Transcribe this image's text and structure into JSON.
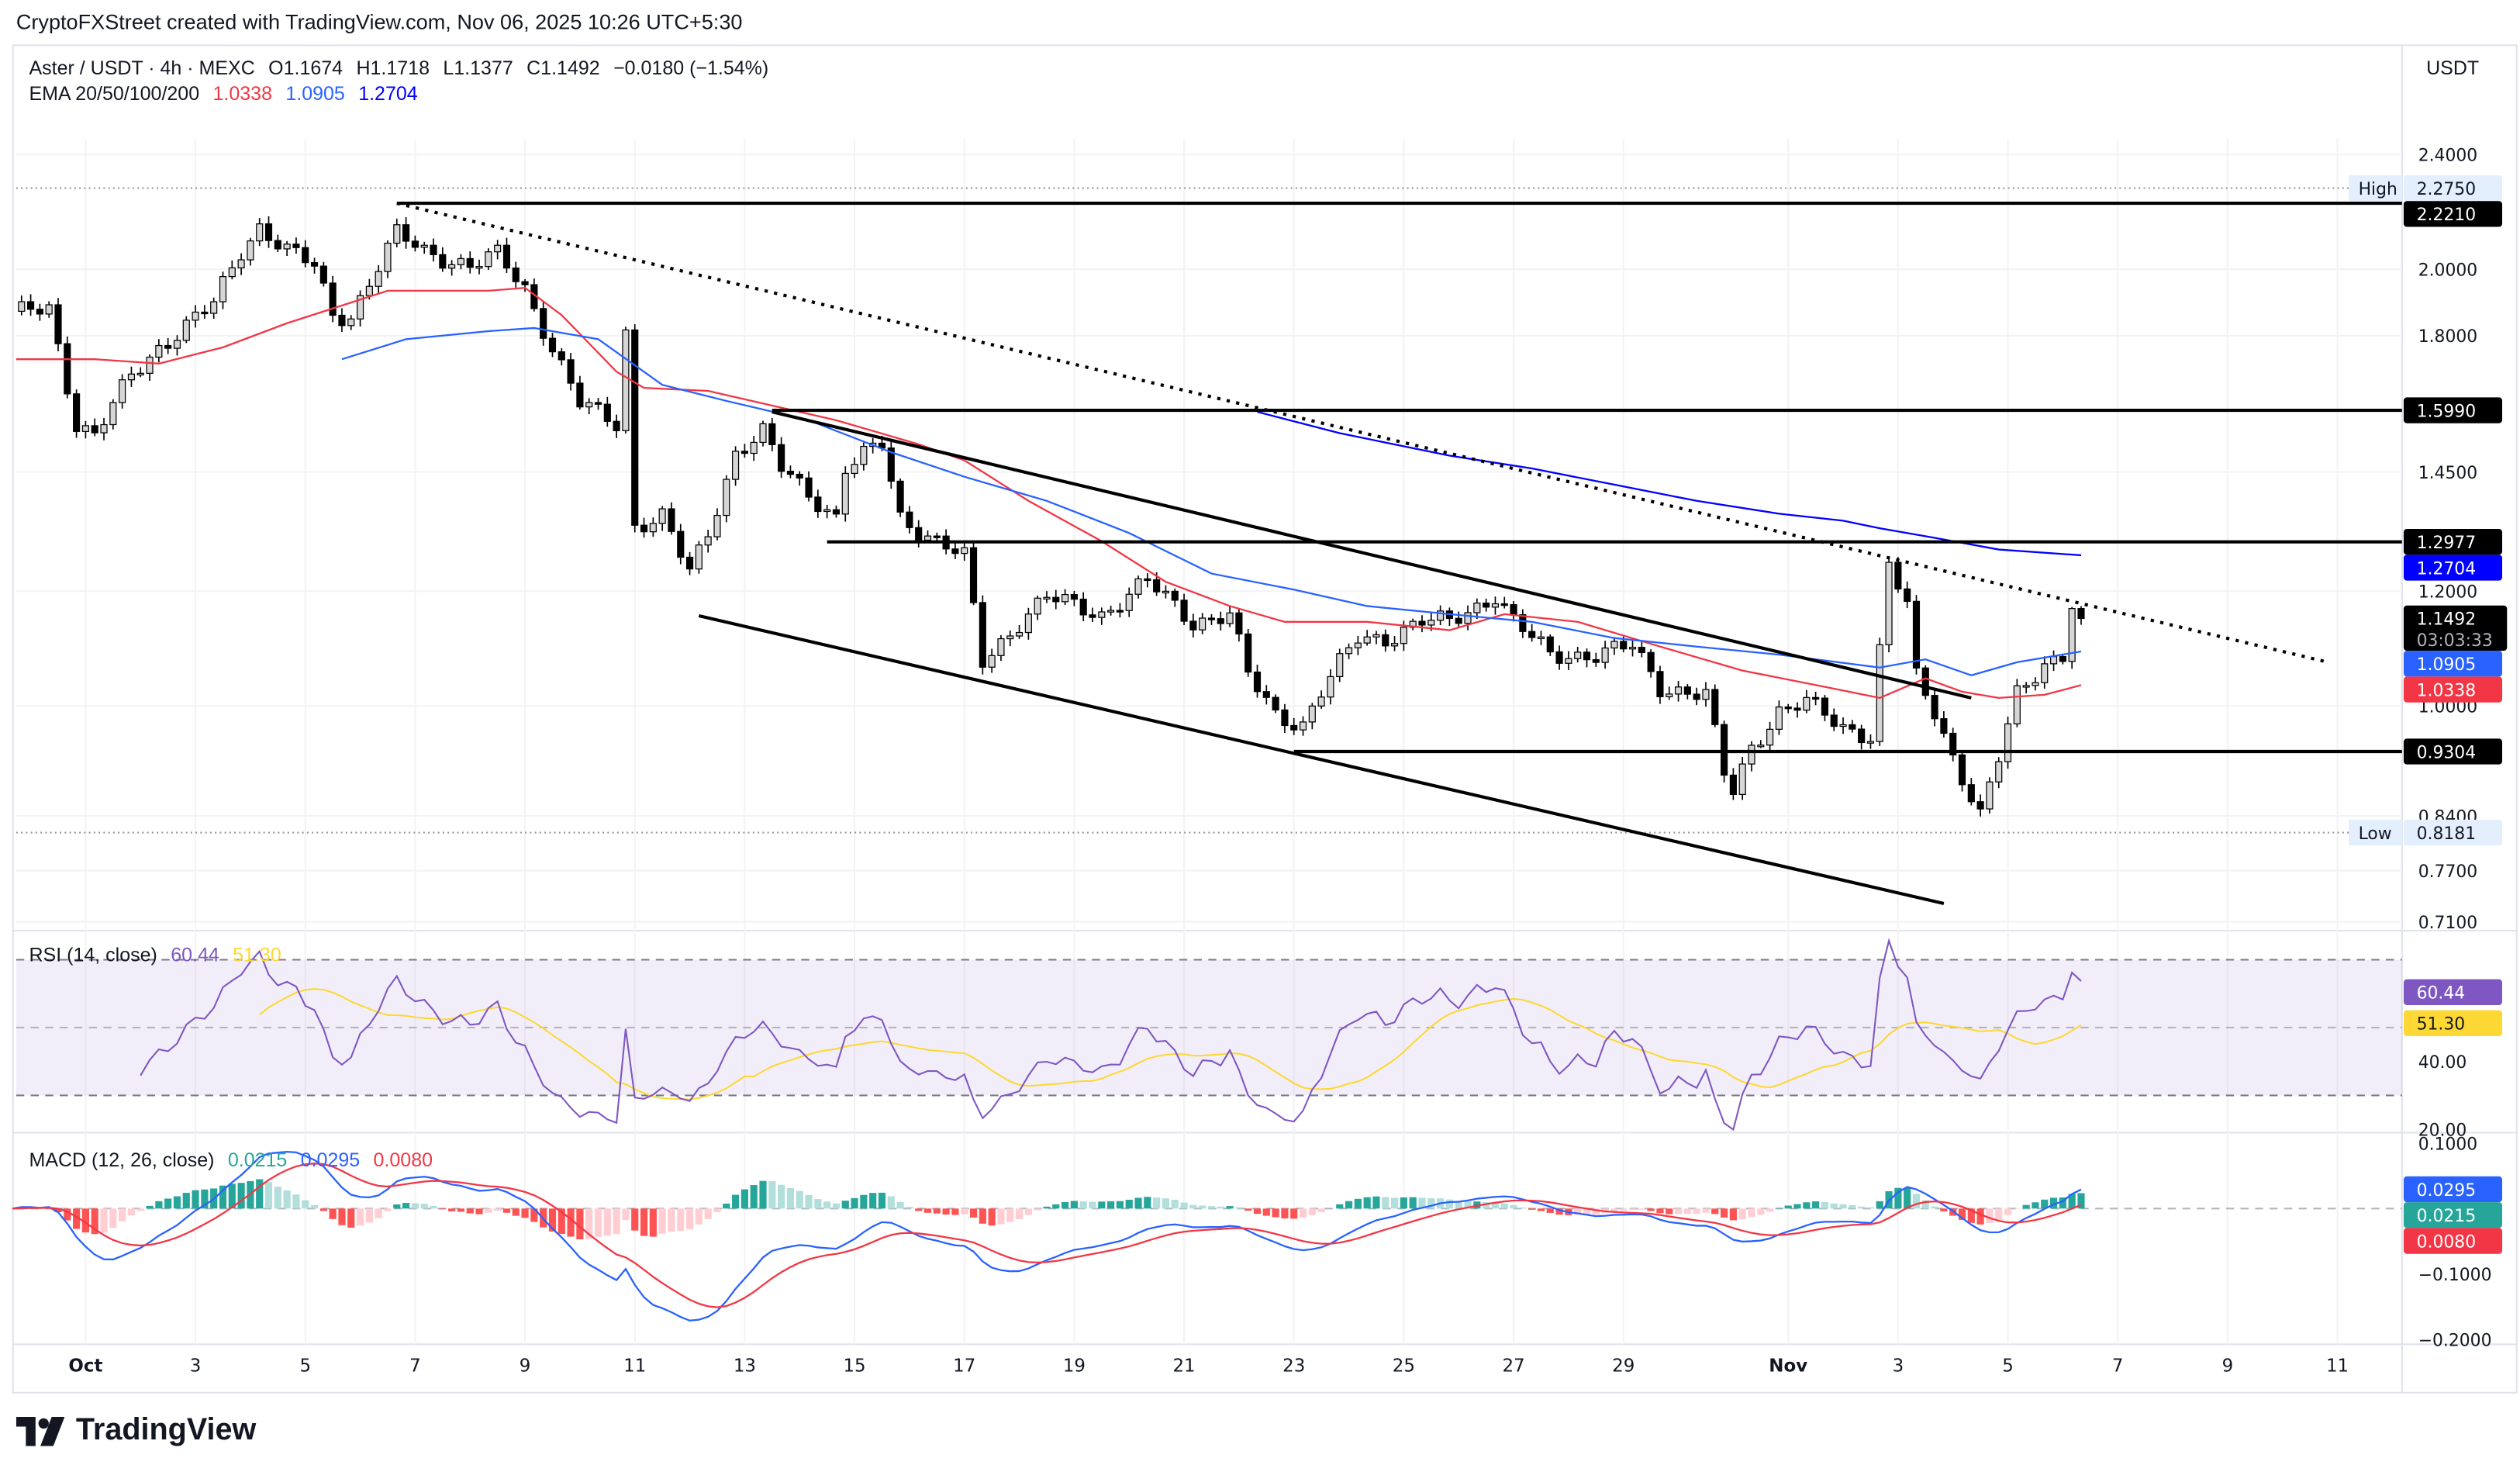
{
  "header": {
    "attribution": "CryptoFXStreet created with TradingView.com, Nov 06, 2025 10:26 UTC+5:30"
  },
  "legend": {
    "symbol": "Aster / USDT · 4h · MEXC",
    "open": "O1.1674",
    "high": "H1.1718",
    "low": "L1.1377",
    "close": "C1.1492",
    "change": "−0.0180 (−1.54%)",
    "ema_label": "EMA 20/50/100/200",
    "ema_values": [
      {
        "value": "1.0338",
        "color": "#f23645"
      },
      {
        "value": "1.0905",
        "color": "#2962ff"
      },
      {
        "value": "1.2704",
        "color": "#0000ff"
      }
    ]
  },
  "currency": "USDT",
  "rsi": {
    "label": "RSI (14, close)",
    "value": "60.44",
    "ma": "51.30",
    "color": "#7e57c2",
    "ma_color": "#fdd835"
  },
  "macd": {
    "label": "MACD (12, 26, close)",
    "histogram": "0.0215",
    "macd": "0.0295",
    "signal": "0.0080",
    "hist_color": "#26a69a",
    "macd_color": "#2962ff",
    "signal_color": "#f23645"
  },
  "logo": "TradingView",
  "chart_data": {
    "type": "candlestick",
    "scale": "log",
    "ylim": [
      0.71,
      2.4
    ],
    "bull_color": "#d6d6d6",
    "bear_color": "#000000",
    "x_axis": [
      {
        "label": "Oct",
        "date": "2025-10-01"
      },
      {
        "label": "3",
        "date": "2025-10-03"
      },
      {
        "label": "5",
        "date": "2025-10-05"
      },
      {
        "label": "7",
        "date": "2025-10-07"
      },
      {
        "label": "9",
        "date": "2025-10-09"
      },
      {
        "label": "11",
        "date": "2025-10-11"
      },
      {
        "label": "13",
        "date": "2025-10-13"
      },
      {
        "label": "15",
        "date": "2025-10-15"
      },
      {
        "label": "17",
        "date": "2025-10-17"
      },
      {
        "label": "19",
        "date": "2025-10-19"
      },
      {
        "label": "21",
        "date": "2025-10-21"
      },
      {
        "label": "23",
        "date": "2025-10-23"
      },
      {
        "label": "25",
        "date": "2025-10-25"
      },
      {
        "label": "27",
        "date": "2025-10-27"
      },
      {
        "label": "29",
        "date": "2025-10-29"
      },
      {
        "label": "Nov",
        "date": "2025-11-01"
      },
      {
        "label": "3",
        "date": "2025-11-03"
      },
      {
        "label": "5",
        "date": "2025-11-05"
      },
      {
        "label": "7",
        "date": "2025-11-07"
      },
      {
        "label": "9",
        "date": "2025-11-09"
      },
      {
        "label": "11",
        "date": "2025-11-11"
      }
    ],
    "price_ticks": [
      "2.4000",
      "2.0000",
      "1.8000",
      "1.4500",
      "1.2000",
      "1.0000",
      "0.8400",
      "0.7700",
      "0.7100"
    ],
    "last_candle": {
      "date": "2025-11-06T08:00",
      "open": 1.1674,
      "high": 1.1718,
      "low": 1.1377,
      "close": 1.1492
    },
    "price_path": [
      [
        "2025-09-29T16:00",
        1.86
      ],
      [
        "2025-09-30T08:00",
        1.884
      ],
      [
        "2025-09-30T20:00",
        1.566
      ],
      [
        "2025-10-01T04:00",
        1.534
      ],
      [
        "2025-10-01T20:00",
        1.69
      ],
      [
        "2025-10-02T08:00",
        1.767
      ],
      [
        "2025-10-03T08:00",
        1.893
      ],
      [
        "2025-10-03T20:00",
        2.06
      ],
      [
        "2025-10-04T04:00",
        2.142
      ],
      [
        "2025-10-04T16:00",
        2.06
      ],
      [
        "2025-10-05T04:00",
        2.009
      ],
      [
        "2025-10-05T12:00",
        1.86
      ],
      [
        "2025-10-05T20:00",
        1.86
      ],
      [
        "2025-10-06T08:00",
        2.009
      ],
      [
        "2025-10-06T16:00",
        2.114
      ],
      [
        "2025-10-07T04:00",
        2.06
      ],
      [
        "2025-10-08T00:00",
        2.009
      ],
      [
        "2025-10-08T12:00",
        2.045
      ],
      [
        "2025-10-09T00:00",
        1.942
      ],
      [
        "2025-10-09T12:00",
        1.767
      ],
      [
        "2025-10-10T00:00",
        1.615
      ],
      [
        "2025-10-10T16:00",
        1.566
      ],
      [
        "2025-10-10T20:00",
        1.813
      ],
      [
        "2025-10-11T00:00",
        1.333
      ],
      [
        "2025-10-11T12:00",
        1.35
      ],
      [
        "2025-10-12T00:00",
        1.234
      ],
      [
        "2025-10-12T08:00",
        1.316
      ],
      [
        "2025-10-12T20:00",
        1.496
      ],
      [
        "2025-10-13T08:00",
        1.542
      ],
      [
        "2025-10-13T16:00",
        1.458
      ],
      [
        "2025-10-14T04:00",
        1.403
      ],
      [
        "2025-10-14T16:00",
        1.35
      ],
      [
        "2025-10-14T20:00",
        1.458
      ],
      [
        "2025-10-15T12:00",
        1.515
      ],
      [
        "2025-10-15T20:00",
        1.35
      ],
      [
        "2025-10-16T12:00",
        1.299
      ],
      [
        "2025-10-17T00:00",
        1.266
      ],
      [
        "2025-10-17T08:00",
        1.072
      ],
      [
        "2025-10-18T00:00",
        1.143
      ],
      [
        "2025-10-18T12:00",
        1.188
      ],
      [
        "2025-10-19T12:00",
        1.157
      ],
      [
        "2025-10-20T08:00",
        1.218
      ],
      [
        "2025-10-21T04:00",
        1.143
      ],
      [
        "2025-10-21T20:00",
        1.157
      ],
      [
        "2025-10-22T04:00",
        1.05
      ],
      [
        "2025-10-22T16:00",
        0.987
      ],
      [
        "2025-10-23T04:00",
        0.972
      ],
      [
        "2025-10-23T12:00",
        1.023
      ],
      [
        "2025-10-24T04:00",
        1.114
      ],
      [
        "2025-10-24T16:00",
        1.114
      ],
      [
        "2025-10-25T08:00",
        1.143
      ],
      [
        "2025-10-25T20:00",
        1.143
      ],
      [
        "2025-10-26T16:00",
        1.193
      ],
      [
        "2025-10-27T00:00",
        1.143
      ],
      [
        "2025-10-27T16:00",
        1.085
      ],
      [
        "2025-10-28T12:00",
        1.085
      ],
      [
        "2025-10-29T04:00",
        1.099
      ],
      [
        "2025-10-29T16:00",
        1.031
      ],
      [
        "2025-10-30T12:00",
        1.018
      ],
      [
        "2025-10-30T20:00",
        0.896
      ],
      [
        "2025-10-31T00:00",
        0.873
      ],
      [
        "2025-10-31T08:00",
        0.938
      ],
      [
        "2025-10-31T20:00",
        0.992
      ],
      [
        "2025-11-01T08:00",
        1.005
      ],
      [
        "2025-11-02T00:00",
        0.967
      ],
      [
        "2025-11-02T12:00",
        0.955
      ],
      [
        "2025-11-02T20:00",
        1.25
      ],
      [
        "2025-11-03T04:00",
        1.172
      ],
      [
        "2025-11-03T08:00",
        1.045
      ],
      [
        "2025-11-03T16:00",
        0.992
      ],
      [
        "2025-11-04T00:00",
        0.924
      ],
      [
        "2025-11-04T12:00",
        0.84
      ],
      [
        "2025-11-04T20:00",
        0.919
      ],
      [
        "2025-11-05T04:00",
        1.018
      ],
      [
        "2025-11-05T16:00",
        1.072
      ],
      [
        "2025-11-06T00:00",
        1.085
      ],
      [
        "2025-11-06T04:00",
        1.1674
      ],
      [
        "2025-11-06T08:00",
        1.1492
      ]
    ],
    "ema_lines": [
      {
        "name": "EMA 20",
        "color": "#f23645",
        "points": [
          [
            "2025-09-29T16:00",
            1.734
          ],
          [
            "2025-10-01T04:00",
            1.734
          ],
          [
            "2025-10-02T08:00",
            1.722
          ],
          [
            "2025-10-03T12:00",
            1.767
          ],
          [
            "2025-10-04T16:00",
            1.836
          ],
          [
            "2025-10-06T12:00",
            1.933
          ],
          [
            "2025-10-08T08:00",
            1.933
          ],
          [
            "2025-10-09T00:00",
            1.942
          ],
          [
            "2025-10-09T16:00",
            1.86
          ],
          [
            "2025-10-10T16:00",
            1.7
          ],
          [
            "2025-10-11T04:00",
            1.657
          ],
          [
            "2025-10-12T08:00",
            1.649
          ],
          [
            "2025-10-14T16:00",
            1.574
          ],
          [
            "2025-10-16T04:00",
            1.515
          ],
          [
            "2025-10-17T00:00",
            1.477
          ],
          [
            "2025-10-18T04:00",
            1.385
          ],
          [
            "2025-10-19T12:00",
            1.299
          ],
          [
            "2025-10-20T16:00",
            1.218
          ],
          [
            "2025-10-21T20:00",
            1.172
          ],
          [
            "2025-10-22T20:00",
            1.143
          ],
          [
            "2025-10-24T08:00",
            1.143
          ],
          [
            "2025-10-25T20:00",
            1.128
          ],
          [
            "2025-10-26T20:00",
            1.157
          ],
          [
            "2025-10-28T04:00",
            1.143
          ],
          [
            "2025-10-29T16:00",
            1.099
          ],
          [
            "2025-10-31T04:00",
            1.058
          ],
          [
            "2025-11-01T16:00",
            1.031
          ],
          [
            "2025-11-02T16:00",
            1.013
          ],
          [
            "2025-11-03T12:00",
            1.045
          ],
          [
            "2025-11-04T04:00",
            1.023
          ],
          [
            "2025-11-04T20:00",
            1.013
          ],
          [
            "2025-11-05T16:00",
            1.018
          ],
          [
            "2025-11-06T08:00",
            1.0338
          ]
        ]
      },
      {
        "name": "EMA 50",
        "color": "#2962ff",
        "points": [
          [
            "2025-10-05T16:00",
            1.734
          ],
          [
            "2025-10-06T20:00",
            1.79
          ],
          [
            "2025-10-08T08:00",
            1.813
          ],
          [
            "2025-10-09T04:00",
            1.822
          ],
          [
            "2025-10-10T08:00",
            1.79
          ],
          [
            "2025-10-11T12:00",
            1.665
          ],
          [
            "2025-10-12T16:00",
            1.623
          ],
          [
            "2025-10-14T04:00",
            1.574
          ],
          [
            "2025-10-15T16:00",
            1.496
          ],
          [
            "2025-10-17T00:00",
            1.439
          ],
          [
            "2025-10-18T12:00",
            1.385
          ],
          [
            "2025-10-20T00:00",
            1.316
          ],
          [
            "2025-10-21T12:00",
            1.234
          ],
          [
            "2025-10-23T00:00",
            1.203
          ],
          [
            "2025-10-24T08:00",
            1.172
          ],
          [
            "2025-10-25T20:00",
            1.157
          ],
          [
            "2025-10-27T08:00",
            1.143
          ],
          [
            "2025-10-28T20:00",
            1.114
          ],
          [
            "2025-10-30T08:00",
            1.099
          ],
          [
            "2025-10-31T20:00",
            1.085
          ],
          [
            "2025-11-02T16:00",
            1.063
          ],
          [
            "2025-11-03T12:00",
            1.077
          ],
          [
            "2025-11-04T08:00",
            1.05
          ],
          [
            "2025-11-05T04:00",
            1.072
          ],
          [
            "2025-11-06T08:00",
            1.0905
          ]
        ]
      },
      {
        "name": "EMA 200",
        "color": "#0000ff",
        "points": [
          [
            "2025-10-22T08:00",
            1.595
          ],
          [
            "2025-10-23T20:00",
            1.542
          ],
          [
            "2025-10-25T20:00",
            1.488
          ],
          [
            "2025-10-27T08:00",
            1.458
          ],
          [
            "2025-10-28T20:00",
            1.421
          ],
          [
            "2025-10-30T08:00",
            1.385
          ],
          [
            "2025-10-31T20:00",
            1.357
          ],
          [
            "2025-11-02T00:00",
            1.342
          ],
          [
            "2025-11-02T16:00",
            1.326
          ],
          [
            "2025-11-03T16:00",
            1.306
          ],
          [
            "2025-11-04T20:00",
            1.282
          ],
          [
            "2025-11-06T08:00",
            1.2704
          ]
        ]
      }
    ],
    "trendlines": [
      {
        "name": "descending-resistance",
        "style": "dotted",
        "from": [
          "2025-10-06T16:00",
          2.221
        ],
        "to": [
          "2025-11-10T20:00",
          1.072
        ]
      },
      {
        "name": "channel-upper",
        "style": "solid",
        "from": [
          "2025-10-13T12:00",
          1.595
        ],
        "to": [
          "2025-11-04T08:00",
          1.013
        ]
      },
      {
        "name": "channel-lower",
        "style": "solid",
        "from": [
          "2025-10-12T04:00",
          1.154
        ],
        "to": [
          "2025-11-03T20:00",
          0.731
        ]
      }
    ],
    "levels": [
      {
        "value": "2.2210",
        "from": "2025-10-06T16:00"
      },
      {
        "value": "1.5990",
        "from": "2025-10-13T12:00"
      },
      {
        "value": "1.2977",
        "from": "2025-10-14T12:00"
      },
      {
        "value": "0.9304",
        "from": "2025-10-23T00:00"
      }
    ],
    "high": {
      "label": "High",
      "value": "2.2750"
    },
    "low": {
      "label": "Low",
      "value": "0.8181"
    },
    "axis_badges": [
      {
        "value": "2.2210",
        "bg": "#000000",
        "fg": "#ffffff"
      },
      {
        "value": "1.5990",
        "bg": "#000000",
        "fg": "#ffffff"
      },
      {
        "value": "1.2977",
        "bg": "#000000",
        "fg": "#ffffff"
      },
      {
        "value": "1.2704",
        "bg": "#0000ff",
        "fg": "#ffffff"
      },
      {
        "value": "1.1492",
        "bg": "#000000",
        "fg": "#ffffff",
        "countdown": "03:03:33"
      },
      {
        "value": "1.0905",
        "bg": "#2962ff",
        "fg": "#ffffff"
      },
      {
        "value": "1.0338",
        "bg": "#f23645",
        "fg": "#ffffff"
      },
      {
        "value": "0.9304",
        "bg": "#000000",
        "fg": "#ffffff"
      }
    ],
    "rsi_pane": {
      "ticks": [
        "40.00",
        "20.00"
      ],
      "bands": [
        70,
        50,
        30
      ],
      "ylim": [
        17,
        75
      ]
    },
    "macd_pane": {
      "ticks": [
        "0.1000",
        "−0.1000",
        "−0.2000"
      ],
      "ylim": [
        -0.205,
        0.1
      ]
    }
  }
}
